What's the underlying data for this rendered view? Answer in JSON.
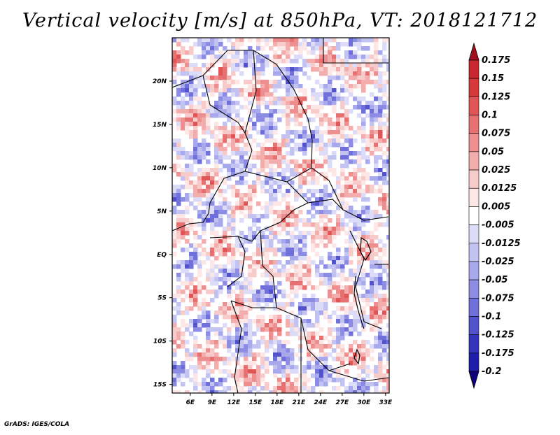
{
  "title": "Vertical velocity [m/s] at 850hPa, VT: 2018121712",
  "footer": "GrADS: IGES/COLA",
  "map": {
    "lon_ticks": [
      "6E",
      "9E",
      "12E",
      "15E",
      "18E",
      "21E",
      "24E",
      "27E",
      "30E",
      "33E"
    ],
    "lat_ticks": [
      "20N",
      "15N",
      "10N",
      "5N",
      "EQ",
      "5S",
      "10S",
      "15S"
    ],
    "lon_range": [
      3.5,
      33.5
    ],
    "lat_range": [
      -16,
      25
    ]
  },
  "colorbar": {
    "levels": [
      "0.175",
      "0.15",
      "0.125",
      "0.1",
      "0.075",
      "0.05",
      "0.025",
      "0.0125",
      "0.005",
      "-0.005",
      "-0.0125",
      "-0.025",
      "-0.05",
      "-0.075",
      "-0.1",
      "-0.125",
      "-0.175",
      "-0.2"
    ],
    "colors": [
      "#b2182b",
      "#c8282e",
      "#d7393a",
      "#e05656",
      "#e77171",
      "#ee8f8f",
      "#f4adad",
      "#f8cbcb",
      "#fce6e6",
      "#ffffff",
      "#dcdcf8",
      "#c3c3f2",
      "#a8a8ec",
      "#8c8ce4",
      "#7070da",
      "#5252cc",
      "#3434bc",
      "#1e1eaa",
      "#0c0c8c"
    ],
    "arrow_top_color": "#9e1020",
    "arrow_bottom_color": "#10007a"
  }
}
